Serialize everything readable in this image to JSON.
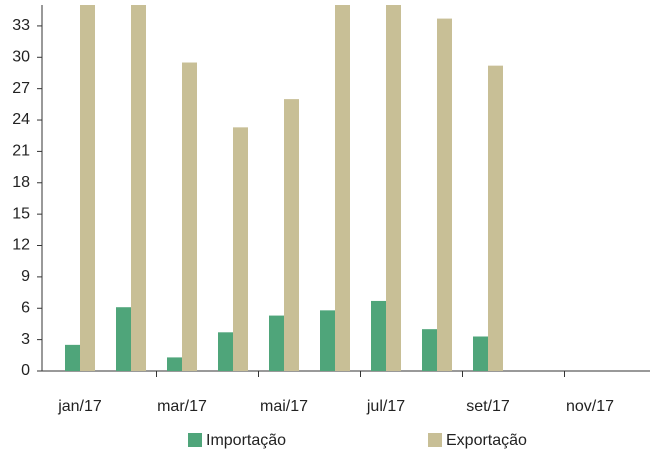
{
  "chart_data": {
    "type": "bar",
    "categories": [
      "jan/17",
      null,
      "mar/17",
      null,
      "mai/17",
      null,
      "jul/17",
      null,
      "set/17",
      null,
      "nov/17",
      null
    ],
    "series": [
      {
        "name": "Importação",
        "color": "#4fa57a",
        "values": [
          2.5,
          6.1,
          1.3,
          3.7,
          5.3,
          5.8,
          6.7,
          4.0,
          3.3,
          null,
          null,
          null
        ]
      },
      {
        "name": "Exportação",
        "color": "#c8bf96",
        "values": [
          35,
          35,
          29.5,
          23.3,
          26,
          35,
          35,
          33.7,
          29.2,
          null,
          null,
          null
        ]
      }
    ],
    "ylim": [
      0,
      35
    ],
    "yticks": [
      0,
      3,
      6,
      9,
      12,
      15,
      18,
      21,
      24,
      27,
      30,
      33
    ],
    "grid": false,
    "legend": "bottom"
  }
}
